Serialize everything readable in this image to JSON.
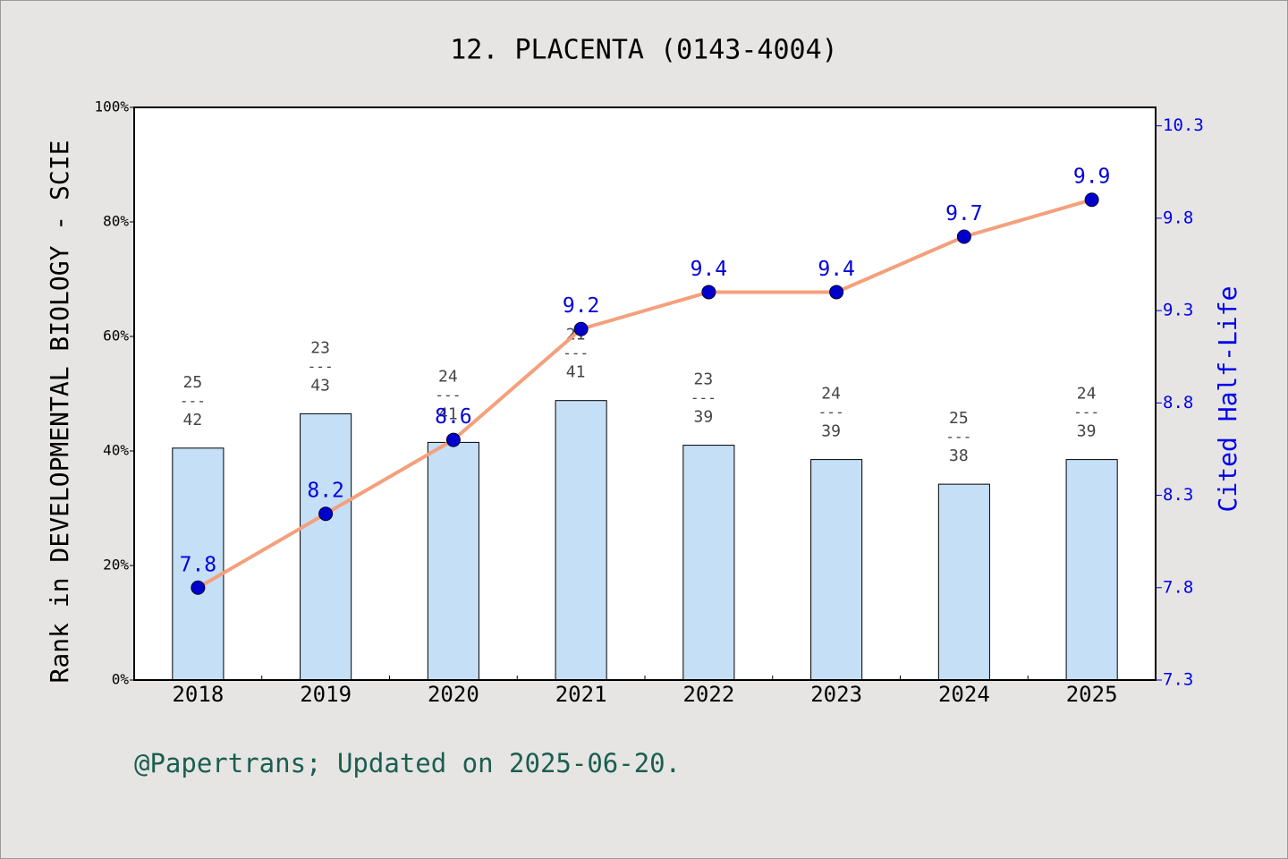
{
  "chart_data": {
    "type": "combo",
    "title": "12. PLACENTA (0143-4004)",
    "y_label": "Rank in DEVELOPMENTAL BIOLOGY - SCIE",
    "y2_label": "Cited Half-Life",
    "footer": "@Papertrans; Updated on 2025-06-20.",
    "categories": [
      "2018",
      "2019",
      "2020",
      "2021",
      "2022",
      "2023",
      "2024",
      "2025"
    ],
    "ylim": [
      0,
      100
    ],
    "yticks": [
      {
        "value": 0,
        "label": "0%"
      },
      {
        "value": 20,
        "label": "20%"
      },
      {
        "value": 40,
        "label": "40%"
      },
      {
        "value": 60,
        "label": "60%"
      },
      {
        "value": 80,
        "label": "80%"
      },
      {
        "value": 100,
        "label": "100%"
      }
    ],
    "y2lim": [
      7.3,
      10.4
    ],
    "y2ticks": [
      7.3,
      7.8,
      8.3,
      8.8,
      9.3,
      9.8,
      10.3
    ],
    "rank_separator": "---",
    "series": [
      {
        "type": "bar",
        "color": "#c5dff6",
        "values": [
          40.5,
          46.5,
          41.5,
          48.8,
          41.0,
          38.5,
          34.2,
          38.5
        ],
        "ranks": [
          25,
          23,
          24,
          21,
          23,
          24,
          25,
          24
        ],
        "totals": [
          42,
          43,
          41,
          41,
          39,
          39,
          38,
          39
        ]
      },
      {
        "type": "line",
        "axis": "y2",
        "color": "#f4a07c",
        "marker_color": "#0000cc",
        "values": [
          7.8,
          8.2,
          8.6,
          9.2,
          9.4,
          9.4,
          9.7,
          9.9
        ]
      }
    ]
  }
}
